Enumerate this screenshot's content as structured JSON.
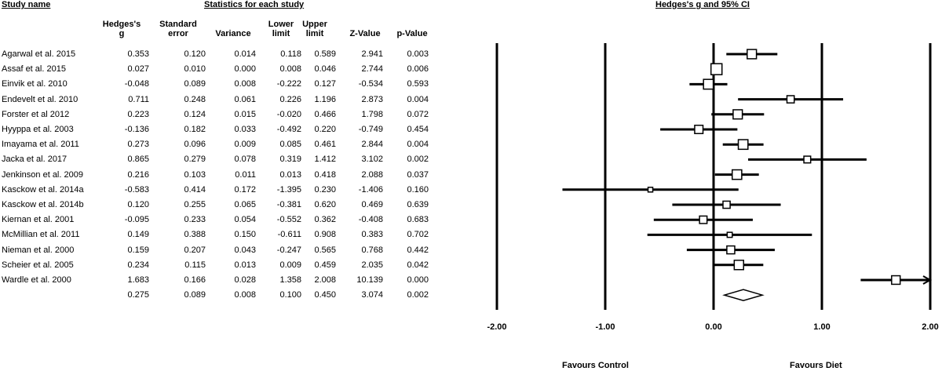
{
  "headers": {
    "study_name": "Study name",
    "stats_title": "Statistics for each study",
    "plot_title": "Hedges's g and 95% CI"
  },
  "columns": {
    "g": [
      "Hedges's",
      "g"
    ],
    "se": [
      "Standard",
      "error"
    ],
    "var": [
      "Variance"
    ],
    "lower": [
      "Lower",
      "limit"
    ],
    "upper": [
      "Upper",
      "limit"
    ],
    "z": [
      "Z-Value"
    ],
    "p": [
      "p-Value"
    ]
  },
  "footer": {
    "favours_left": "Favours Control",
    "favours_right": "Favours Diet"
  },
  "chart_data": {
    "type": "forest",
    "xlim": [
      -2,
      2
    ],
    "ticks": [
      "-2.00",
      "-1.00",
      "0.00",
      "1.00",
      "2.00"
    ],
    "tick_values": [
      -2,
      -1,
      0,
      1,
      2
    ],
    "rows": [
      {
        "study": "Agarwal et al. 2015",
        "g": "0.353",
        "se": "0.120",
        "var": "0.014",
        "lower": "0.118",
        "upper": "0.589",
        "z": "2.941",
        "p": "0.003"
      },
      {
        "study": "Assaf et al. 2015",
        "g": "0.027",
        "se": "0.010",
        "var": "0.000",
        "lower": "0.008",
        "upper": "0.046",
        "z": "2.744",
        "p": "0.006"
      },
      {
        "study": "Einvik et al. 2010",
        "g": "-0.048",
        "se": "0.089",
        "var": "0.008",
        "lower": "-0.222",
        "upper": "0.127",
        "z": "-0.534",
        "p": "0.593"
      },
      {
        "study": "Endevelt et al. 2010",
        "g": "0.711",
        "se": "0.248",
        "var": "0.061",
        "lower": "0.226",
        "upper": "1.196",
        "z": "2.873",
        "p": "0.004"
      },
      {
        "study": "Forster et al 2012",
        "g": "0.223",
        "se": "0.124",
        "var": "0.015",
        "lower": "-0.020",
        "upper": "0.466",
        "z": "1.798",
        "p": "0.072"
      },
      {
        "study": "Hyyppa et al. 2003",
        "g": "-0.136",
        "se": "0.182",
        "var": "0.033",
        "lower": "-0.492",
        "upper": "0.220",
        "z": "-0.749",
        "p": "0.454"
      },
      {
        "study": "Imayama et al. 2011",
        "g": "0.273",
        "se": "0.096",
        "var": "0.009",
        "lower": "0.085",
        "upper": "0.461",
        "z": "2.844",
        "p": "0.004"
      },
      {
        "study": "Jacka et al. 2017",
        "g": "0.865",
        "se": "0.279",
        "var": "0.078",
        "lower": "0.319",
        "upper": "1.412",
        "z": "3.102",
        "p": "0.002"
      },
      {
        "study": "Jenkinson et al. 2009",
        "g": "0.216",
        "se": "0.103",
        "var": "0.011",
        "lower": "0.013",
        "upper": "0.418",
        "z": "2.088",
        "p": "0.037"
      },
      {
        "study": "Kasckow et al. 2014a",
        "g": "-0.583",
        "se": "0.414",
        "var": "0.172",
        "lower": "-1.395",
        "upper": "0.230",
        "z": "-1.406",
        "p": "0.160"
      },
      {
        "study": "Kasckow et al. 2014b",
        "g": "0.120",
        "se": "0.255",
        "var": "0.065",
        "lower": "-0.381",
        "upper": "0.620",
        "z": "0.469",
        "p": "0.639"
      },
      {
        "study": "Kiernan et al. 2001",
        "g": "-0.095",
        "se": "0.233",
        "var": "0.054",
        "lower": "-0.552",
        "upper": "0.362",
        "z": "-0.408",
        "p": "0.683"
      },
      {
        "study": "McMillian et al. 2011",
        "g": "0.149",
        "se": "0.388",
        "var": "0.150",
        "lower": "-0.611",
        "upper": "0.908",
        "z": "0.383",
        "p": "0.702"
      },
      {
        "study": "Nieman et al. 2000",
        "g": "0.159",
        "se": "0.207",
        "var": "0.043",
        "lower": "-0.247",
        "upper": "0.565",
        "z": "0.768",
        "p": "0.442"
      },
      {
        "study": "Scheier et al. 2005",
        "g": "0.234",
        "se": "0.115",
        "var": "0.013",
        "lower": "0.009",
        "upper": "0.459",
        "z": "2.035",
        "p": "0.042"
      },
      {
        "study": "Wardle et al. 2000",
        "g": "1.683",
        "se": "0.166",
        "var": "0.028",
        "lower": "1.358",
        "upper": "2.008",
        "z": "10.139",
        "p": "0.000"
      }
    ],
    "summary": {
      "study": "",
      "g": "0.275",
      "se": "0.089",
      "var": "0.008",
      "lower": "0.100",
      "upper": "0.450",
      "z": "3.074",
      "p": "0.002"
    },
    "weights": [
      0.12,
      0.01,
      0.089,
      0.248,
      0.124,
      0.182,
      0.096,
      0.279,
      0.103,
      0.414,
      0.255,
      0.233,
      0.388,
      0.207,
      0.115,
      0.166
    ]
  }
}
